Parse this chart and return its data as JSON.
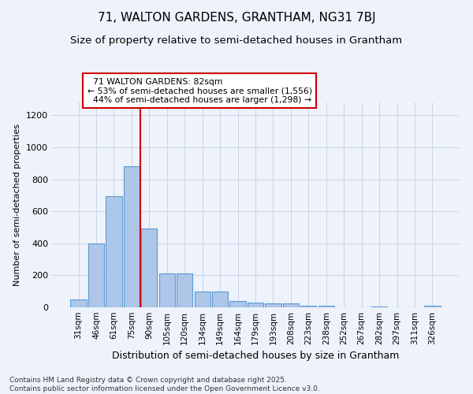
{
  "title": "71, WALTON GARDENS, GRANTHAM, NG31 7BJ",
  "subtitle": "Size of property relative to semi-detached houses in Grantham",
  "xlabel": "Distribution of semi-detached houses by size in Grantham",
  "ylabel": "Number of semi-detached properties",
  "categories": [
    "31sqm",
    "46sqm",
    "61sqm",
    "75sqm",
    "90sqm",
    "105sqm",
    "120sqm",
    "134sqm",
    "149sqm",
    "164sqm",
    "179sqm",
    "193sqm",
    "208sqm",
    "223sqm",
    "238sqm",
    "252sqm",
    "267sqm",
    "282sqm",
    "297sqm",
    "311sqm",
    "326sqm"
  ],
  "values": [
    50,
    400,
    695,
    880,
    490,
    210,
    210,
    100,
    100,
    40,
    30,
    25,
    25,
    10,
    8,
    0,
    0,
    5,
    0,
    0,
    8
  ],
  "bar_color": "#aec6e8",
  "bar_edge_color": "#5b9bd5",
  "red_line_x": 3.5,
  "property_label": "71 WALTON GARDENS: 82sqm",
  "smaller_pct": "53%",
  "smaller_count": "1,556",
  "larger_pct": "44%",
  "larger_count": "1,298",
  "annotation_box_color": "#ffffff",
  "annotation_box_edge": "#cc0000",
  "grid_color": "#c8d4e8",
  "background_color": "#eef2fa",
  "footer1": "Contains HM Land Registry data © Crown copyright and database right 2025.",
  "footer2": "Contains public sector information licensed under the Open Government Licence v3.0.",
  "ylim_max": 1280,
  "title_fontsize": 11,
  "subtitle_fontsize": 9.5,
  "ylabel_fontsize": 8,
  "xlabel_fontsize": 9,
  "tick_fontsize": 7.5,
  "footer_fontsize": 6.5
}
